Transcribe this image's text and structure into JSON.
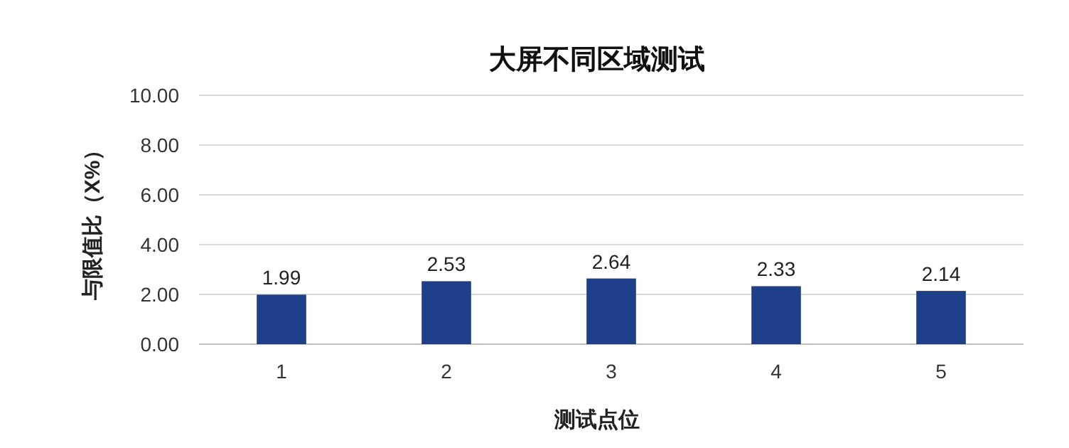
{
  "chart_data": {
    "type": "bar",
    "title": "大屏不同区域测试",
    "xlabel": "测试点位",
    "ylabel": "与限值比（X%）",
    "categories": [
      "1",
      "2",
      "3",
      "4",
      "5"
    ],
    "values": [
      1.99,
      2.53,
      2.64,
      2.33,
      2.14
    ],
    "color": "#1f3f8a",
    "ylim": [
      0,
      10
    ],
    "yticks": [
      {
        "value": 0,
        "label": "0.00"
      },
      {
        "value": 2,
        "label": "2.00"
      },
      {
        "value": 4,
        "label": "4.00"
      },
      {
        "value": 6,
        "label": "6.00"
      },
      {
        "value": 8,
        "label": "8.00"
      },
      {
        "value": 10,
        "label": "10.00"
      }
    ],
    "grid": "y",
    "data_labels": true
  }
}
